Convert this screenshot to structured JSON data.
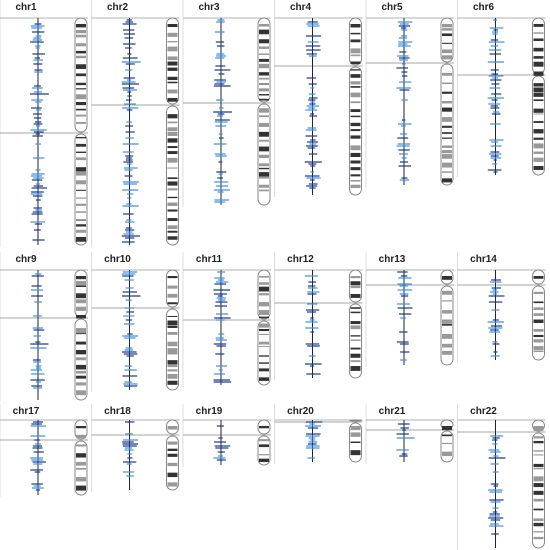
{
  "panels": [
    {
      "label": "chr1"
    },
    {
      "label": "chr2"
    },
    {
      "label": "chr3"
    },
    {
      "label": "chr4"
    },
    {
      "label": "chr5"
    },
    {
      "label": "chr6"
    },
    {
      "label": "chr9"
    },
    {
      "label": "chr10"
    },
    {
      "label": "chr11"
    },
    {
      "label": "chr12"
    },
    {
      "label": "chr13"
    },
    {
      "label": "chr14"
    },
    {
      "label": "chr17"
    },
    {
      "label": "chr18"
    },
    {
      "label": "chr19"
    },
    {
      "label": "chr20"
    },
    {
      "label": "chr21"
    },
    {
      "label": "chr22"
    }
  ]
}
